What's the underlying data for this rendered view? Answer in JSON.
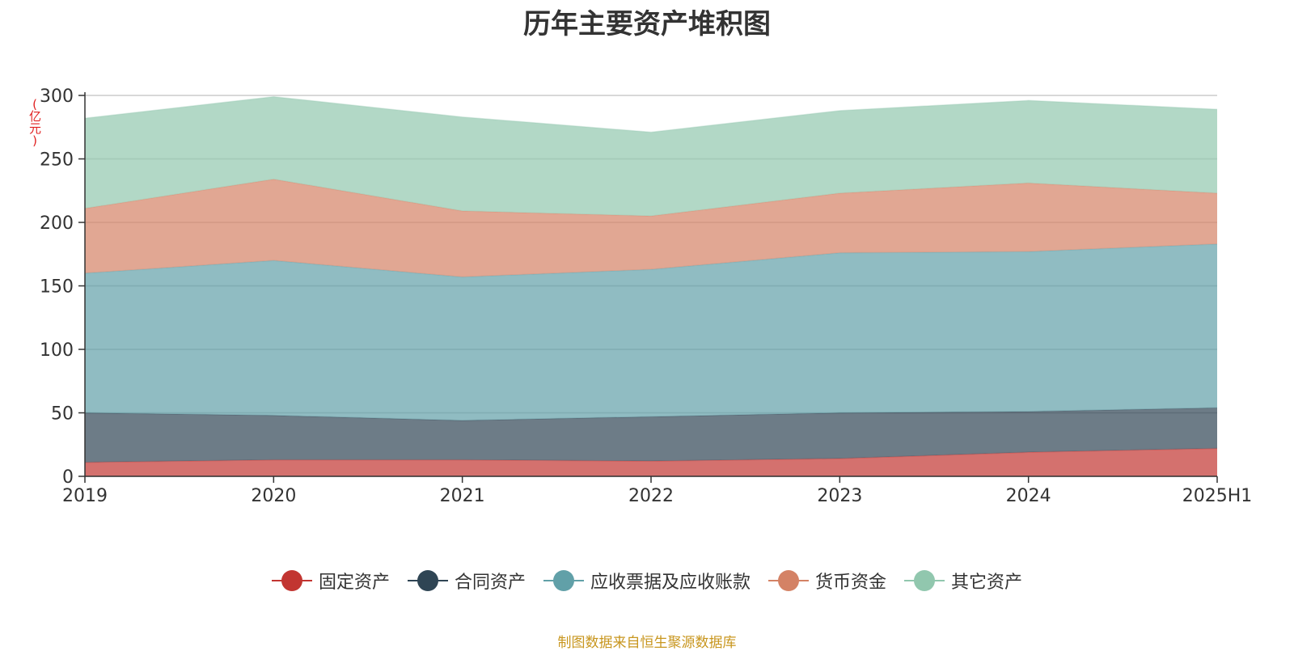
{
  "chart_data": {
    "type": "area",
    "stacked": true,
    "title": "历年主要资产堆积图",
    "ylabel": "(亿元)",
    "x": [
      "2019",
      "2020",
      "2021",
      "2022",
      "2023",
      "2024",
      "2025H1"
    ],
    "ylim": [
      0,
      300
    ],
    "yticks": [
      0,
      50,
      100,
      150,
      200,
      250,
      300
    ],
    "grid": true,
    "legend_position": "bottom",
    "series": [
      {
        "name": "固定资产",
        "color": "#c23531",
        "values": [
          11,
          13,
          13,
          12,
          14,
          19,
          22
        ]
      },
      {
        "name": "合同资产",
        "color": "#2f4554",
        "values": [
          39,
          35,
          31,
          35,
          36,
          32,
          32
        ]
      },
      {
        "name": "应收票据及应收账款",
        "color": "#61a0a8",
        "values": [
          110,
          122,
          113,
          116,
          126,
          126,
          129
        ]
      },
      {
        "name": "货币资金",
        "color": "#d48265",
        "values": [
          51,
          64,
          52,
          42,
          47,
          54,
          40
        ]
      },
      {
        "name": "其它资产",
        "color": "#91c7ae",
        "values": [
          71,
          65,
          74,
          66,
          65,
          65,
          66
        ]
      }
    ]
  },
  "footer": {
    "source": "制图数据来自恒生聚源数据库"
  }
}
